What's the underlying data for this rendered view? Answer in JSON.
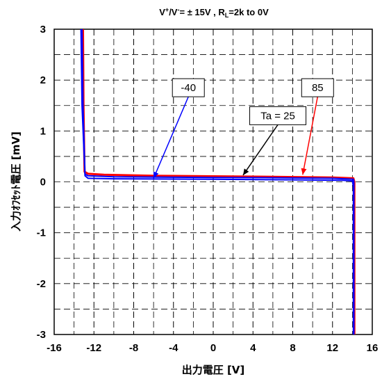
{
  "chart_data": {
    "type": "line",
    "title": {
      "prefix": "V",
      "sup1": "+",
      "mid": "/V",
      "sup2": "-",
      "eq": "= ± 15V , R",
      "sub": "L",
      "tail": "=2k     to 0V"
    },
    "xlabel": "出力電圧 [V]",
    "ylabel": "入力ｵﾌｾｯﾄ電圧 [mV]",
    "xlim": [
      -16,
      16
    ],
    "ylim": [
      -3,
      3
    ],
    "x_ticks": [
      "-16",
      "-12",
      "-8",
      "-4",
      "0",
      "4",
      "8",
      "12",
      "16"
    ],
    "y_ticks": [
      "3",
      "2",
      "1",
      "0",
      "-1",
      "-2",
      "-3"
    ],
    "grid": true,
    "series": [
      {
        "name": "85",
        "color": "#ff0000",
        "points": [
          [
            -13.1,
            3.0
          ],
          [
            -13.05,
            1.5
          ],
          [
            -12.95,
            0.2
          ],
          [
            -12.6,
            0.16
          ],
          [
            -11,
            0.14
          ],
          [
            -6,
            0.12
          ],
          [
            0,
            0.11
          ],
          [
            6,
            0.1
          ],
          [
            12,
            0.085
          ],
          [
            14.1,
            0.07
          ],
          [
            14.2,
            0.0
          ],
          [
            14.2,
            -3.0
          ]
        ]
      },
      {
        "name": "-40",
        "color": "#0000ff",
        "points": [
          [
            -13.3,
            3.0
          ],
          [
            -13.2,
            1.5
          ],
          [
            -12.9,
            0.12
          ],
          [
            -12.6,
            0.07
          ],
          [
            -10,
            0.06
          ],
          [
            0,
            0.05
          ],
          [
            8,
            0.04
          ],
          [
            13,
            0.03
          ],
          [
            14.0,
            0.02
          ],
          [
            14.1,
            -0.1
          ],
          [
            14.1,
            -3.0
          ]
        ]
      },
      {
        "name": "Ta = 25",
        "color": "#0000ff",
        "points": [
          [
            -13.2,
            3.0
          ],
          [
            -13.1,
            1.5
          ],
          [
            -12.9,
            0.15
          ],
          [
            -12.6,
            0.12
          ],
          [
            -10,
            0.1
          ],
          [
            -4,
            0.09
          ],
          [
            0,
            0.085
          ],
          [
            6,
            0.08
          ],
          [
            12,
            0.07
          ],
          [
            14.1,
            0.05
          ],
          [
            14.15,
            0.0
          ],
          [
            14.15,
            -3.0
          ]
        ]
      }
    ],
    "annotations": [
      {
        "text": "-40",
        "color": "#0000ff",
        "box_x": -2.5,
        "box_y": 1.85,
        "arrow_to": [
          -6.0,
          0.07
        ]
      },
      {
        "text": "Ta = 25",
        "color": "#000000",
        "box_x": 6.5,
        "box_y": 1.3,
        "arrow_to": [
          3.0,
          0.13
        ]
      },
      {
        "text": "85",
        "color": "#ff0000",
        "box_x": 10.5,
        "box_y": 1.85,
        "arrow_to": [
          9.0,
          0.14
        ]
      }
    ]
  }
}
